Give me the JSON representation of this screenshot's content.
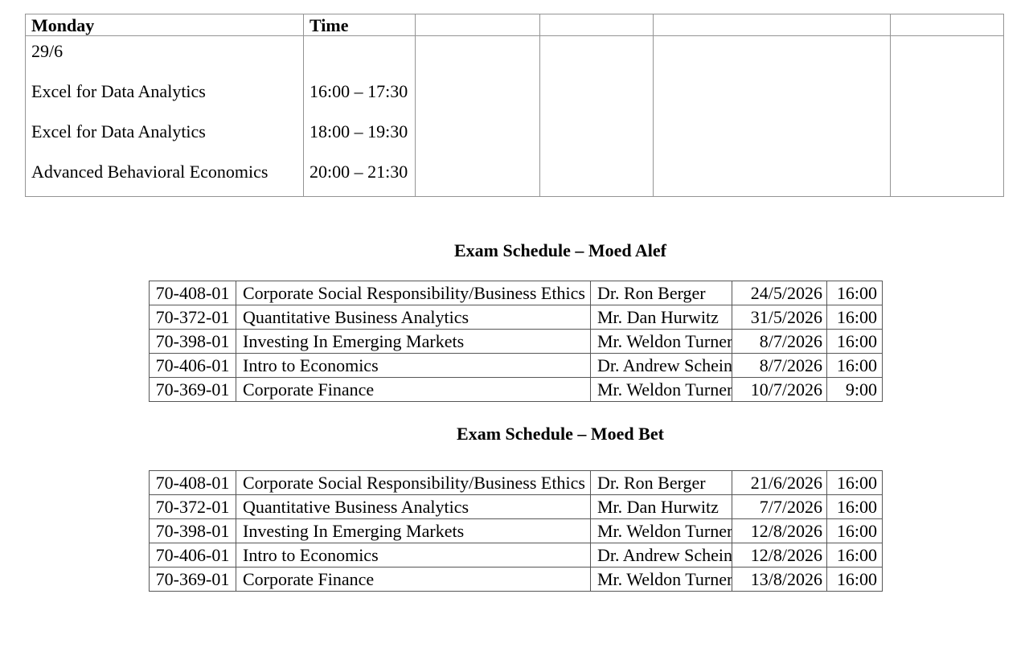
{
  "weekly_schedule": {
    "day_header": "Monday",
    "time_header": "Time",
    "date": "29/6",
    "entries": [
      {
        "course": "Excel for Data Analytics",
        "time": "16:00 – 17:30"
      },
      {
        "course": "Excel for Data Analytics",
        "time": "18:00 – 19:30"
      },
      {
        "course": "Advanced Behavioral Economics",
        "time": "20:00 – 21:30"
      }
    ]
  },
  "moed_alef": {
    "title": "Exam Schedule – Moed Alef",
    "rows": [
      [
        "70-408-01",
        "Corporate Social Responsibility/Business Ethics",
        "Dr. Ron Berger",
        "24/5/2026",
        "16:00"
      ],
      [
        "70-372-01",
        "Quantitative Business Analytics",
        "Mr. Dan Hurwitz",
        "31/5/2026",
        "16:00"
      ],
      [
        "70-398-01",
        "Investing In Emerging Markets",
        "Mr. Weldon Turner",
        "8/7/2026",
        "16:00"
      ],
      [
        "70-406-01",
        "Intro to Economics",
        "Dr. Andrew Schein",
        "8/7/2026",
        "16:00"
      ],
      [
        "70-369-01",
        "Corporate Finance",
        "Mr. Weldon Turner",
        "10/7/2026",
        "9:00"
      ]
    ]
  },
  "moed_bet": {
    "title": "Exam Schedule – Moed Bet",
    "rows": [
      [
        "70-408-01",
        "Corporate Social Responsibility/Business Ethics",
        "Dr. Ron Berger",
        "21/6/2026",
        "16:00"
      ],
      [
        "70-372-01",
        "Quantitative Business Analytics",
        "Mr. Dan Hurwitz",
        "7/7/2026",
        "16:00"
      ],
      [
        "70-398-01",
        "Investing In Emerging Markets",
        "Mr. Weldon Turner",
        "12/8/2026",
        "16:00"
      ],
      [
        "70-406-01",
        "Intro to Economics",
        "Dr. Andrew Schein",
        "12/8/2026",
        "16:00"
      ],
      [
        "70-369-01",
        "Corporate Finance",
        "Mr. Weldon Turner",
        "13/8/2026",
        "16:00"
      ]
    ]
  }
}
